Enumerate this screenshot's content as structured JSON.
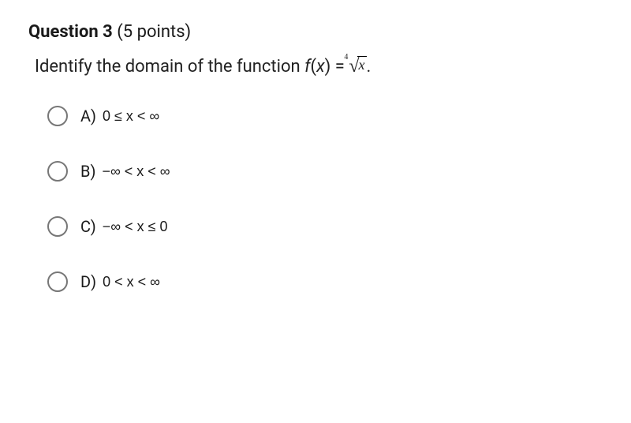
{
  "question": {
    "label": "Question 3",
    "points": "(5 points)",
    "prompt_prefix": "Identify the domain of the function ",
    "fx": "f",
    "x": "x",
    "equals": "= ",
    "root_index": "4",
    "radicand": "x",
    "period": "."
  },
  "options": [
    {
      "letter": "A)",
      "math": "0 ≤ x < ∞"
    },
    {
      "letter": "B)",
      "math": "−∞ < x < ∞"
    },
    {
      "letter": "C)",
      "math": "−∞ < x ≤ 0"
    },
    {
      "letter": "D)",
      "math": "0 < x < ∞"
    }
  ],
  "styles": {
    "text_color": "#1a1a1a",
    "radio_border": "#777777",
    "background": "#ffffff",
    "header_fontsize": 22,
    "prompt_fontsize": 22,
    "option_fontsize": 20,
    "option_gap": 44,
    "radio_size": 26
  }
}
